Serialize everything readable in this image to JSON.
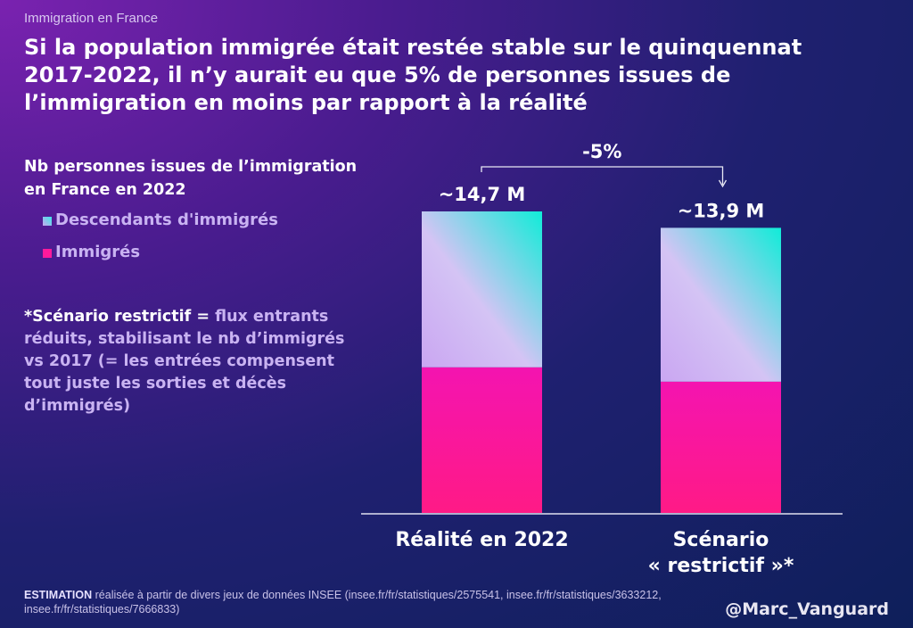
{
  "kicker": "Immigration en France",
  "title": "Si la population immigrée était restée stable sur le quinquennat 2017-2022, il n’y aurait eu que 5% de personnes issues de l’immigration en moins par rapport à la réalité",
  "legend": {
    "title": "Nb personnes issues de l’immigration en France en 2022",
    "items": [
      {
        "label": "Descendants d'immigrés",
        "color": "#7fe8f0"
      },
      {
        "label": "Immigrés",
        "color": "#ff1a9c"
      }
    ]
  },
  "note": {
    "bold": "*Scénario restrictif = ",
    "text": "flux entrants réduits, stabilisant le nb d’immigrés vs 2017 (= les entrées compensent tout juste les sorties et décès d’immigrés)"
  },
  "footer": {
    "bold": "ESTIMATION",
    "text": " réalisée à partir de divers jeux de données INSEE (insee.fr/fr/statistiques/2575541, insee.fr/fr/statistiques/3633212, insee.fr/fr/statistiques/7666833)"
  },
  "handle": "@Marc_Vanguard",
  "chart_data": {
    "type": "bar",
    "stacked": true,
    "unit": "M",
    "categories": [
      "Réalité en 2022",
      "Scénario « restrictif »*"
    ],
    "category_lines": [
      [
        "Réalité en 2022"
      ],
      [
        "Scénario",
        "« restrictif »*"
      ]
    ],
    "series": [
      {
        "name": "Immigrés",
        "values": [
          7.1,
          6.4
        ],
        "color": "#ff1a9c"
      },
      {
        "name": "Descendants d'immigrés",
        "values": [
          7.6,
          7.5
        ],
        "color": "#7fe8f0"
      }
    ],
    "total_labels": [
      "~14,7 M",
      "~13,9 M"
    ],
    "annotation": "-5%",
    "ylim": [
      0,
      14.7
    ],
    "grid": false
  }
}
